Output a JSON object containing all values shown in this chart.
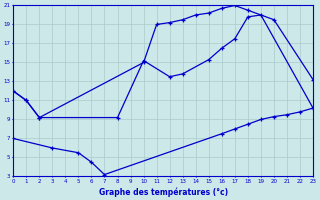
{
  "xlabel": "Graphe des températures (°c)",
  "bg_color": "#cce8e8",
  "grid_color": "#aacccc",
  "line_color": "#0000cc",
  "xmin": 0,
  "xmax": 23,
  "ymin": 3,
  "ymax": 21,
  "yticks": [
    3,
    5,
    7,
    9,
    11,
    13,
    15,
    17,
    19,
    21
  ],
  "xticks": [
    0,
    1,
    2,
    3,
    4,
    5,
    6,
    7,
    8,
    9,
    10,
    11,
    12,
    13,
    14,
    15,
    16,
    17,
    18,
    19,
    20,
    21,
    22,
    23
  ],
  "line1_x": [
    0,
    1,
    2,
    10,
    11,
    12,
    13,
    14,
    15,
    16,
    17,
    18,
    20,
    23
  ],
  "line1_y": [
    12,
    11,
    9.2,
    15,
    19,
    19.2,
    19.5,
    20,
    20.2,
    20.7,
    21,
    20.5,
    19.5,
    13.2
  ],
  "line2_x": [
    0,
    1,
    2,
    8,
    10,
    12,
    13,
    15,
    16,
    17,
    18,
    19,
    23
  ],
  "line2_y": [
    12,
    11,
    9.2,
    9.2,
    15.2,
    13.5,
    13.8,
    15.3,
    16.5,
    17.5,
    19.8,
    20,
    10.2
  ],
  "line3_x": [
    0,
    3,
    5,
    6,
    7,
    16,
    17,
    18,
    19,
    20,
    21,
    22,
    23
  ],
  "line3_y": [
    7,
    6,
    5.5,
    4.5,
    3.2,
    7.5,
    8,
    8.5,
    9,
    9.3,
    9.5,
    9.8,
    10.2
  ]
}
